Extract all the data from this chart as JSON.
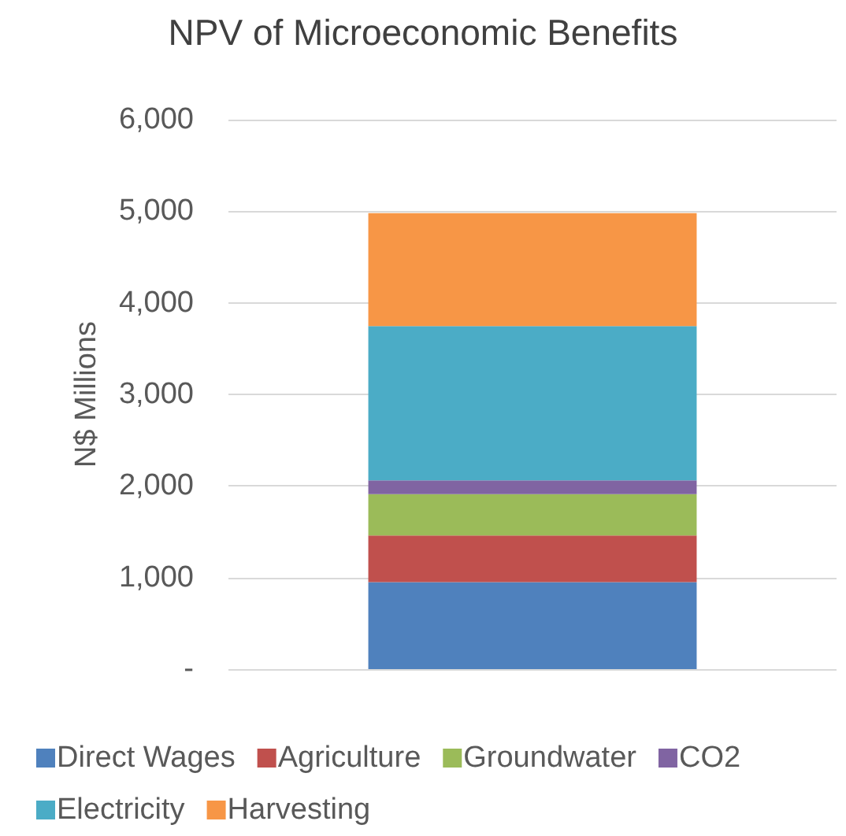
{
  "chart_data": {
    "type": "bar",
    "title": "NPV of Microeconomic Benefits",
    "ylabel": "N$ Millions",
    "categories": [
      null
    ],
    "stacked": true,
    "series": [
      {
        "name": "Direct Wages",
        "color": "#4f81bd",
        "values": [
          950
        ]
      },
      {
        "name": "Agriculture",
        "color": "#c0504d",
        "values": [
          510
        ]
      },
      {
        "name": "Groundwater",
        "color": "#9bbb59",
        "values": [
          450
        ]
      },
      {
        "name": "CO2",
        "color": "#8064a2",
        "values": [
          150
        ]
      },
      {
        "name": "Electricity",
        "color": "#4bacc6",
        "values": [
          1685
        ]
      },
      {
        "name": "Harvesting",
        "color": "#f79646",
        "values": [
          1235
        ]
      }
    ],
    "ylim": [
      0,
      6000
    ],
    "yticks": [
      {
        "value": 0,
        "label": "-"
      },
      {
        "value": 1000,
        "label": "1,000"
      },
      {
        "value": 2000,
        "label": "2,000"
      },
      {
        "value": 3000,
        "label": "3,000"
      },
      {
        "value": 4000,
        "label": "4,000"
      },
      {
        "value": 5000,
        "label": "5,000"
      },
      {
        "value": 6000,
        "label": "6,000"
      }
    ],
    "grid": "y",
    "legend": "bottom"
  }
}
